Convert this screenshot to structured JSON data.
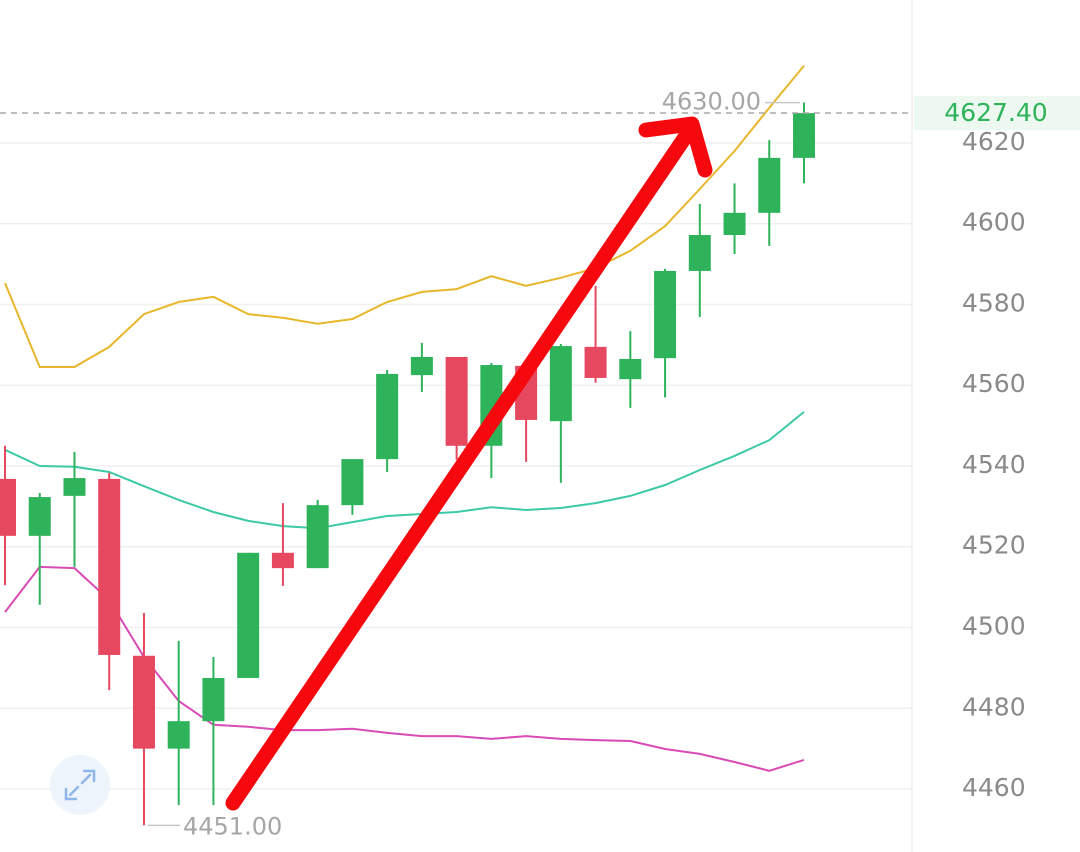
{
  "chart_data": {
    "type": "candlestick",
    "categories": [
      null,
      null,
      null,
      null,
      null,
      null,
      null,
      null,
      null,
      null,
      null,
      null,
      null,
      null,
      null,
      null,
      null,
      null,
      null,
      null,
      null,
      null,
      null,
      null
    ],
    "open": [
      4536.8,
      4522.7,
      4532.6,
      4536.8,
      4493.0,
      4470.0,
      4476.8,
      4487.5,
      4518.5,
      4514.7,
      4530.3,
      4541.7,
      4562.5,
      4567.0,
      4545.0,
      4564.8,
      4551.1,
      4569.5,
      4561.5,
      4566.7,
      4588.3,
      4597.2,
      4602.7,
      4616.3
    ],
    "high": [
      4545.0,
      4533.3,
      4543.5,
      4538.3,
      4503.6,
      4496.7,
      4492.7,
      4518.5,
      4530.8,
      4531.6,
      4541.7,
      4563.8,
      4570.5,
      4567.0,
      4565.5,
      4564.8,
      4570.2,
      4584.6,
      4573.4,
      4588.8,
      4604.9,
      4610.0,
      4620.7,
      4630.0
    ],
    "low": [
      4510.5,
      4505.6,
      4515.0,
      4484.5,
      4451.0,
      4456.0,
      4456.0,
      4487.5,
      4510.3,
      4514.7,
      4527.9,
      4538.5,
      4558.3,
      4541.5,
      4537.0,
      4541.0,
      4535.8,
      4560.6,
      4554.4,
      4557.0,
      4576.9,
      4592.5,
      4594.5,
      4610.0
    ],
    "close": [
      4522.7,
      4532.3,
      4537.0,
      4493.2,
      4470.0,
      4476.8,
      4487.5,
      4518.5,
      4514.7,
      4530.3,
      4541.7,
      4562.8,
      4567.0,
      4545.0,
      4565.0,
      4551.4,
      4569.7,
      4561.8,
      4566.5,
      4588.3,
      4597.2,
      4602.7,
      4616.3,
      4627.4
    ],
    "up_color": "#2eb35a",
    "down_color": "#e5485f",
    "overlays": [
      {
        "color": "#e8b62a",
        "values": [
          4585.3,
          4564.5,
          4564.5,
          4569.5,
          4577.6,
          4580.6,
          4581.9,
          4577.6,
          4576.7,
          4575.2,
          4576.4,
          4580.6,
          4583.1,
          4583.8,
          4587.0,
          4584.6,
          4586.6,
          4589.0,
          4593.3,
          4599.4,
          4608.6,
          4618.0,
          4628.7,
          4639.1
        ]
      },
      {
        "color": "#3cc9a6",
        "values": [
          4544.0,
          4540.0,
          4539.8,
          4538.5,
          4535.0,
          4531.6,
          4528.6,
          4526.4,
          4525.1,
          4524.6,
          4526.1,
          4527.6,
          4528.1,
          4528.6,
          4529.8,
          4529.1,
          4529.6,
          4530.8,
          4532.6,
          4535.3,
          4539.0,
          4542.5,
          4546.4,
          4553.4
        ]
      },
      {
        "color": "#d94bb5",
        "values": [
          4503.8,
          4515.0,
          4514.7,
          4506.8,
          4492.7,
          4481.8,
          4475.9,
          4475.4,
          4474.6,
          4474.6,
          4474.9,
          4473.9,
          4473.1,
          4473.1,
          4472.4,
          4473.1,
          4472.4,
          4472.1,
          4471.9,
          4469.9,
          4468.7,
          4466.7,
          4464.5,
          4467.2
        ]
      }
    ],
    "ylim": [
      4444.4,
      4655.4
    ],
    "yticks": [
      4460,
      4480,
      4500,
      4520,
      4540,
      4560,
      4580,
      4600,
      4620
    ],
    "grid": true,
    "annotations": {
      "last_price": {
        "value": 4627.4,
        "label": "4627.40"
      },
      "max": {
        "value": 4630,
        "label": "4630.00"
      },
      "min": {
        "value": 4451,
        "label": "4451.00"
      }
    }
  }
}
